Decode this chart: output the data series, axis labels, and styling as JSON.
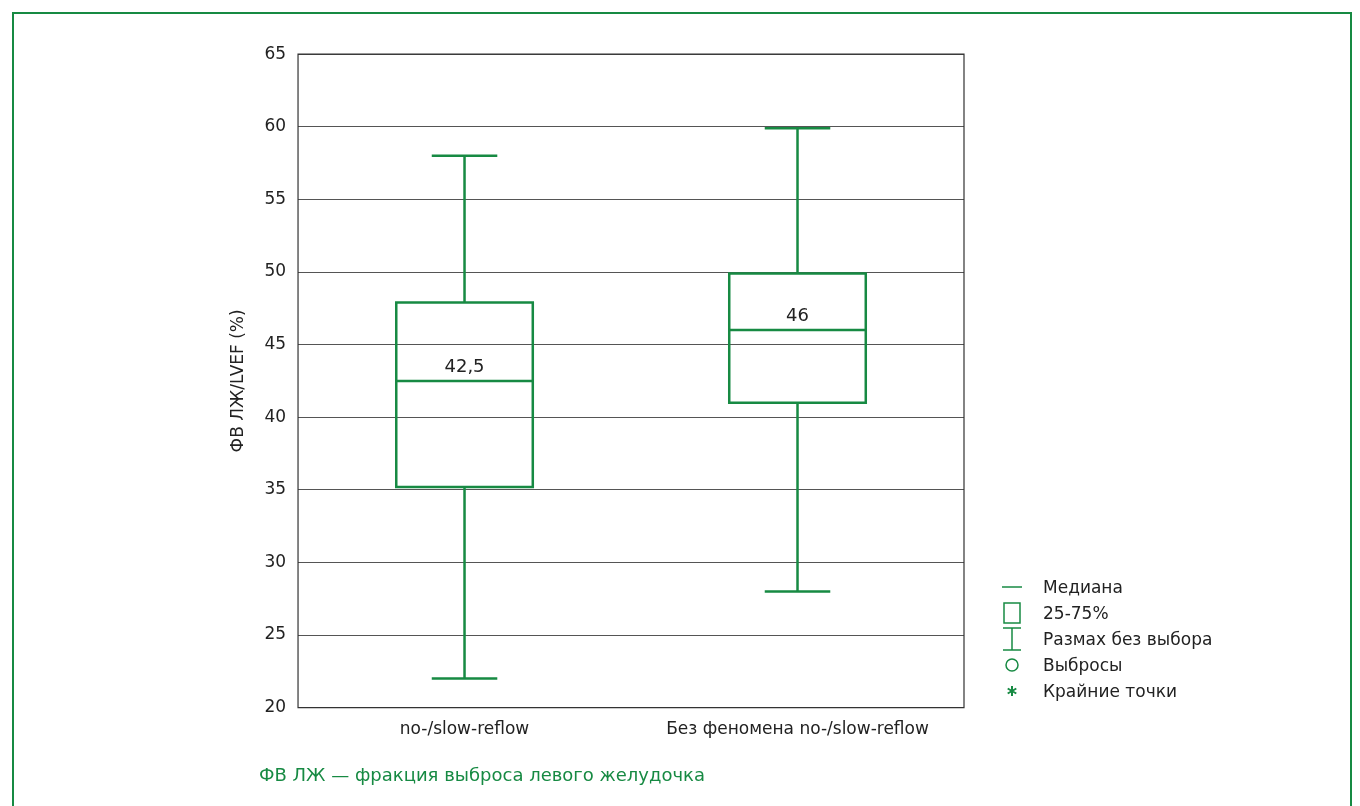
{
  "chart_data": {
    "type": "box",
    "ylabel": "ФВ ЛЖ/LVEF (%)",
    "categories": [
      "no-/slow-reflow",
      "Без феномена no-/slow-reflow"
    ],
    "color": "#178a43",
    "boxes": [
      {
        "low": 22,
        "q1": 35.2,
        "median": 42.5,
        "q3": 47.9,
        "high": 58
      },
      {
        "low": 28,
        "q1": 41,
        "median": 46,
        "q3": 49.9,
        "high": 59.9
      }
    ],
    "ylim": [
      20,
      65
    ],
    "yticks": [
      20,
      25,
      30,
      35,
      40,
      45,
      50,
      55,
      60,
      65
    ],
    "grid": "y",
    "annotations": [
      {
        "text": "42,5",
        "x": "no-/slow-reflow",
        "y": 42.5
      },
      {
        "text": "46",
        "x": "Без феномена no-/slow-reflow",
        "y": 46
      },
      "Медиана",
      "25-75%",
      "Размах без выбора",
      "Выбросы",
      "Крайние точки",
      "ФВ ЛЖ — фракция выброса левого желудочка"
    ]
  }
}
